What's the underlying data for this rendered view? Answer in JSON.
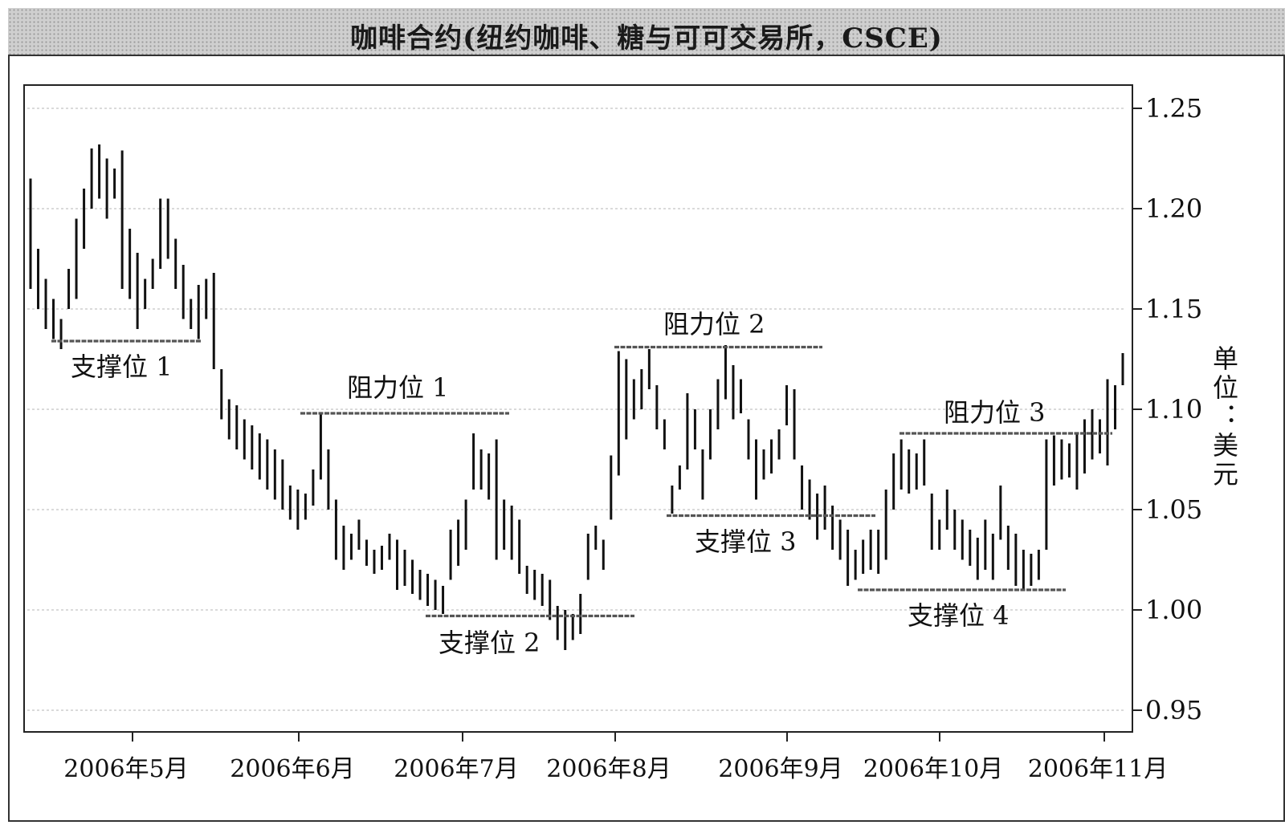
{
  "chart_data": {
    "type": "ohlc",
    "title": "咖啡合约(纽约咖啡、糖与可可交易所，CSCE)",
    "ylabel": "单位：美元",
    "ylim": [
      0.93,
      1.27
    ],
    "y_ticks": [
      "1.25",
      "1.20",
      "1.15",
      "1.10",
      "1.05",
      "1.00",
      "0.95"
    ],
    "x_ticks": [
      "2006年5月",
      "2006年6月",
      "2006年7月",
      "2006年8月",
      "2006年9月",
      "2006年10月",
      "2006年11月"
    ],
    "grid": true,
    "series": [
      {
        "bars": [
          {
            "h": 1.215,
            "l": 1.16
          },
          {
            "h": 1.18,
            "l": 1.15
          },
          {
            "h": 1.165,
            "l": 1.14
          },
          {
            "h": 1.155,
            "l": 1.135
          },
          {
            "h": 1.145,
            "l": 1.13
          },
          {
            "h": 1.17,
            "l": 1.15
          },
          {
            "h": 1.195,
            "l": 1.155
          },
          {
            "h": 1.21,
            "l": 1.18
          },
          {
            "h": 1.23,
            "l": 1.2
          },
          {
            "h": 1.232,
            "l": 1.205
          },
          {
            "h": 1.225,
            "l": 1.195
          },
          {
            "h": 1.22,
            "l": 1.205
          },
          {
            "h": 1.229,
            "l": 1.16
          },
          {
            "h": 1.19,
            "l": 1.155
          },
          {
            "h": 1.178,
            "l": 1.14
          },
          {
            "h": 1.165,
            "l": 1.15
          },
          {
            "h": 1.175,
            "l": 1.16
          },
          {
            "h": 1.205,
            "l": 1.17
          },
          {
            "h": 1.205,
            "l": 1.175
          },
          {
            "h": 1.185,
            "l": 1.16
          },
          {
            "h": 1.172,
            "l": 1.145
          },
          {
            "h": 1.155,
            "l": 1.14
          },
          {
            "h": 1.162,
            "l": 1.135
          },
          {
            "h": 1.165,
            "l": 1.145
          },
          {
            "h": 1.168,
            "l": 1.12
          },
          {
            "h": 1.12,
            "l": 1.095
          },
          {
            "h": 1.105,
            "l": 1.085
          },
          {
            "h": 1.102,
            "l": 1.08
          },
          {
            "h": 1.095,
            "l": 1.075
          },
          {
            "h": 1.092,
            "l": 1.07
          },
          {
            "h": 1.088,
            "l": 1.065
          },
          {
            "h": 1.085,
            "l": 1.06
          },
          {
            "h": 1.08,
            "l": 1.055
          },
          {
            "h": 1.075,
            "l": 1.05
          },
          {
            "h": 1.062,
            "l": 1.045
          },
          {
            "h": 1.06,
            "l": 1.04
          },
          {
            "h": 1.058,
            "l": 1.045
          },
          {
            "h": 1.07,
            "l": 1.052
          },
          {
            "h": 1.098,
            "l": 1.065
          },
          {
            "h": 1.08,
            "l": 1.05
          },
          {
            "h": 1.055,
            "l": 1.025
          },
          {
            "h": 1.042,
            "l": 1.02
          },
          {
            "h": 1.038,
            "l": 1.025
          },
          {
            "h": 1.045,
            "l": 1.03
          },
          {
            "h": 1.035,
            "l": 1.022
          },
          {
            "h": 1.03,
            "l": 1.018
          },
          {
            "h": 1.032,
            "l": 1.02
          },
          {
            "h": 1.038,
            "l": 1.025
          },
          {
            "h": 1.035,
            "l": 1.01
          },
          {
            "h": 1.03,
            "l": 1.012
          },
          {
            "h": 1.025,
            "l": 1.008
          },
          {
            "h": 1.02,
            "l": 1.005
          },
          {
            "h": 1.018,
            "l": 1.002
          },
          {
            "h": 1.015,
            "l": 1.0
          },
          {
            "h": 1.012,
            "l": 0.998
          },
          {
            "h": 1.04,
            "l": 1.015
          },
          {
            "h": 1.045,
            "l": 1.022
          },
          {
            "h": 1.055,
            "l": 1.03
          },
          {
            "h": 1.088,
            "l": 1.06
          },
          {
            "h": 1.08,
            "l": 1.06
          },
          {
            "h": 1.078,
            "l": 1.055
          },
          {
            "h": 1.085,
            "l": 1.025
          },
          {
            "h": 1.055,
            "l": 1.03
          },
          {
            "h": 1.052,
            "l": 1.025
          },
          {
            "h": 1.045,
            "l": 1.018
          },
          {
            "h": 1.022,
            "l": 1.008
          },
          {
            "h": 1.02,
            "l": 1.005
          },
          {
            "h": 1.018,
            "l": 1.002
          },
          {
            "h": 1.015,
            "l": 0.995
          },
          {
            "h": 1.002,
            "l": 0.985
          },
          {
            "h": 1.0,
            "l": 0.98
          },
          {
            "h": 0.998,
            "l": 0.985
          },
          {
            "h": 1.008,
            "l": 0.988
          },
          {
            "h": 1.038,
            "l": 1.015
          },
          {
            "h": 1.042,
            "l": 1.03
          },
          {
            "h": 1.035,
            "l": 1.02
          },
          {
            "h": 1.077,
            "l": 1.045
          },
          {
            "h": 1.129,
            "l": 1.067
          },
          {
            "h": 1.125,
            "l": 1.085
          },
          {
            "h": 1.115,
            "l": 1.095
          },
          {
            "h": 1.12,
            "l": 1.1
          },
          {
            "h": 1.13,
            "l": 1.11
          },
          {
            "h": 1.112,
            "l": 1.09
          },
          {
            "h": 1.095,
            "l": 1.08
          },
          {
            "h": 1.062,
            "l": 1.048
          },
          {
            "h": 1.072,
            "l": 1.06
          },
          {
            "h": 1.108,
            "l": 1.07
          },
          {
            "h": 1.1,
            "l": 1.08
          },
          {
            "h": 1.08,
            "l": 1.055
          },
          {
            "h": 1.1,
            "l": 1.075
          },
          {
            "h": 1.115,
            "l": 1.09
          },
          {
            "h": 1.132,
            "l": 1.105
          },
          {
            "h": 1.122,
            "l": 1.095
          },
          {
            "h": 1.115,
            "l": 1.098
          },
          {
            "h": 1.095,
            "l": 1.075
          },
          {
            "h": 1.085,
            "l": 1.055
          },
          {
            "h": 1.08,
            "l": 1.065
          },
          {
            "h": 1.085,
            "l": 1.068
          },
          {
            "h": 1.09,
            "l": 1.075
          },
          {
            "h": 1.112,
            "l": 1.092
          },
          {
            "h": 1.11,
            "l": 1.075
          },
          {
            "h": 1.072,
            "l": 1.05
          },
          {
            "h": 1.065,
            "l": 1.045
          },
          {
            "h": 1.058,
            "l": 1.035
          },
          {
            "h": 1.062,
            "l": 1.04
          },
          {
            "h": 1.052,
            "l": 1.03
          },
          {
            "h": 1.045,
            "l": 1.025
          },
          {
            "h": 1.04,
            "l": 1.012
          },
          {
            "h": 1.03,
            "l": 1.015
          },
          {
            "h": 1.035,
            "l": 1.018
          },
          {
            "h": 1.04,
            "l": 1.02
          },
          {
            "h": 1.04,
            "l": 1.018
          },
          {
            "h": 1.06,
            "l": 1.025
          },
          {
            "h": 1.078,
            "l": 1.05
          },
          {
            "h": 1.085,
            "l": 1.06
          },
          {
            "h": 1.08,
            "l": 1.058
          },
          {
            "h": 1.078,
            "l": 1.06
          },
          {
            "h": 1.085,
            "l": 1.062
          },
          {
            "h": 1.058,
            "l": 1.03
          },
          {
            "h": 1.045,
            "l": 1.03
          },
          {
            "h": 1.06,
            "l": 1.04
          },
          {
            "h": 1.05,
            "l": 1.03
          },
          {
            "h": 1.045,
            "l": 1.025
          },
          {
            "h": 1.04,
            "l": 1.022
          },
          {
            "h": 1.036,
            "l": 1.015
          },
          {
            "h": 1.045,
            "l": 1.02
          },
          {
            "h": 1.038,
            "l": 1.015
          },
          {
            "h": 1.062,
            "l": 1.035
          },
          {
            "h": 1.042,
            "l": 1.02
          },
          {
            "h": 1.038,
            "l": 1.012
          },
          {
            "h": 1.03,
            "l": 1.01
          },
          {
            "h": 1.028,
            "l": 1.012
          },
          {
            "h": 1.03,
            "l": 1.015
          },
          {
            "h": 1.085,
            "l": 1.03
          },
          {
            "h": 1.087,
            "l": 1.062
          },
          {
            "h": 1.085,
            "l": 1.065
          },
          {
            "h": 1.083,
            "l": 1.066
          },
          {
            "h": 1.088,
            "l": 1.06
          },
          {
            "h": 1.095,
            "l": 1.068
          },
          {
            "h": 1.1,
            "l": 1.075
          },
          {
            "h": 1.095,
            "l": 1.078
          },
          {
            "h": 1.115,
            "l": 1.072
          },
          {
            "h": 1.112,
            "l": 1.09
          },
          {
            "h": 1.128,
            "l": 1.112
          }
        ]
      }
    ],
    "annotations": [
      {
        "label": "支撑位 1",
        "kind": "support",
        "y": 1.134
      },
      {
        "label": "阻力位 1",
        "kind": "resistance",
        "y": 1.098
      },
      {
        "label": "支撑位 2",
        "kind": "support",
        "y": 0.997
      },
      {
        "label": "阻力位 2",
        "kind": "resistance",
        "y": 1.131
      },
      {
        "label": "支撑位 3",
        "kind": "support",
        "y": 1.047
      },
      {
        "label": "支撑位 4",
        "kind": "support",
        "y": 1.01
      },
      {
        "label": "阻力位 3",
        "kind": "resistance",
        "y": 1.088
      }
    ]
  }
}
